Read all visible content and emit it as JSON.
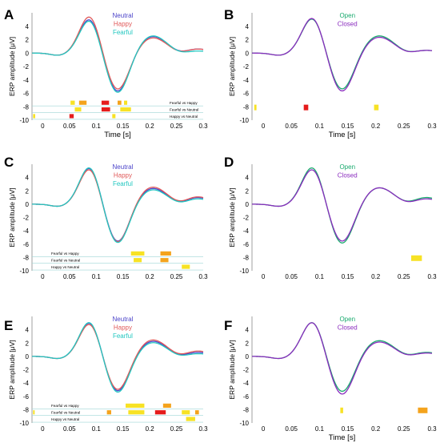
{
  "colors": {
    "Neutral": "#4b43c9",
    "Happy": "#e05a5a",
    "Fearful": "#22c7c0",
    "Open": "#1aaa6e",
    "Closed": "#8a2cbe",
    "sig_low": "#f7e225",
    "sig_mid": "#f4a31d",
    "sig_high": "#e51c1c"
  },
  "chart_data": [
    {
      "panel": "A",
      "type": "line",
      "xlabel": "Time [s]",
      "ylabel": "ERP amplitude [μV]",
      "xlim": [
        -0.02,
        0.3
      ],
      "ylim": [
        -10,
        6
      ],
      "xticks": [
        "0",
        "0.05",
        "0.1",
        "0.15",
        "0.2",
        "0.25",
        "0.3"
      ],
      "yticks": [
        "4",
        "2",
        "0",
        "-2",
        "-4",
        "-6",
        "-8",
        "-10"
      ],
      "legend": [
        "Neutral",
        "Happy",
        "Fearful"
      ],
      "series": [
        {
          "name": "Neutral",
          "peak1": 5.2,
          "trough": -5.9,
          "peak2": 2.5,
          "tail": 0.6
        },
        {
          "name": "Happy",
          "peak1": 5.6,
          "trough": -5.6,
          "peak2": 2.3,
          "tail": 0.6
        },
        {
          "name": "Fearful",
          "peak1": 5.0,
          "trough": -6.1,
          "peak2": 2.6,
          "tail": 0.3
        }
      ],
      "comparisons": [
        {
          "label": "Fearful vs Happy",
          "intervals": [
            [
              0.052,
              0.06
            ],
            [
              0.068,
              0.082
            ],
            [
              0.11,
              0.124
            ],
            [
              0.14,
              0.147
            ],
            [
              0.152,
              0.158
            ]
          ]
        },
        {
          "label": "Fearful vs Neutral",
          "intervals": [
            [
              0.06,
              0.072
            ],
            [
              0.11,
              0.126
            ],
            [
              0.145,
              0.165
            ]
          ]
        },
        {
          "label": "Happy vs Neutral",
          "intervals": [
            [
              -0.018,
              -0.014
            ],
            [
              0.05,
              0.058
            ],
            [
              0.13,
              0.136
            ]
          ]
        }
      ]
    },
    {
      "panel": "B",
      "type": "line",
      "xlabel": "Time [s]",
      "ylabel": "ERP amplitude [μV]",
      "xlim": [
        -0.02,
        0.3
      ],
      "ylim": [
        -10,
        6
      ],
      "xticks": [
        "0",
        "0.05",
        "0.1",
        "0.15",
        "0.2",
        "0.25",
        "0.3"
      ],
      "yticks": [
        "4",
        "2",
        "0",
        "-2",
        "-4",
        "-6",
        "-8",
        "-10"
      ],
      "legend": [
        "Open",
        "Closed"
      ],
      "series": [
        {
          "name": "Open",
          "peak1": 5.3,
          "trough": -5.6,
          "peak2": 2.6,
          "tail": 0.4
        },
        {
          "name": "Closed",
          "peak1": 5.4,
          "trough": -5.9,
          "peak2": 2.4,
          "tail": 0.4
        }
      ],
      "comparisons": [
        {
          "label": "",
          "intervals": [
            [
              -0.016,
              -0.012
            ],
            [
              0.072,
              0.08
            ],
            [
              0.197,
              0.205
            ]
          ]
        }
      ]
    },
    {
      "panel": "C",
      "type": "line",
      "xlabel": "",
      "ylabel": "ERP amplitude [μV]",
      "xlim": [
        -0.02,
        0.3
      ],
      "ylim": [
        -10,
        6
      ],
      "xticks": [
        "0",
        "0.05",
        "0.1",
        "0.15",
        "0.2",
        "0.25",
        "0.3"
      ],
      "yticks": [
        "4",
        "2",
        "0",
        "-2",
        "-4",
        "-6",
        "-8",
        "-10"
      ],
      "legend": [
        "Neutral",
        "Happy",
        "Fearful"
      ],
      "series": [
        {
          "name": "Neutral",
          "peak1": 5.6,
          "trough": -5.8,
          "peak2": 2.4,
          "tail": 1.0
        },
        {
          "name": "Happy",
          "peak1": 5.4,
          "trough": -5.9,
          "peak2": 2.6,
          "tail": 1.1
        },
        {
          "name": "Fearful",
          "peak1": 5.7,
          "trough": -6.0,
          "peak2": 2.2,
          "tail": 0.8
        }
      ],
      "comparisons": [
        {
          "label": "Fearful vs Happy",
          "intervals": [
            [
              0.165,
              0.19
            ],
            [
              0.22,
              0.24
            ]
          ]
        },
        {
          "label": "Fearful vs Neutral",
          "intervals": [
            [
              0.17,
              0.185
            ],
            [
              0.22,
              0.235
            ]
          ]
        },
        {
          "label": "Happy vs Neutral",
          "intervals": [
            [
              0.26,
              0.275
            ]
          ]
        }
      ]
    },
    {
      "panel": "D",
      "type": "line",
      "xlabel": "",
      "ylabel": "ERP amplitude [μV]",
      "xlim": [
        -0.02,
        0.3
      ],
      "ylim": [
        -10,
        6
      ],
      "xticks": [
        "0",
        "0.05",
        "0.1",
        "0.15",
        "0.2",
        "0.25",
        "0.3"
      ],
      "yticks": [
        "4",
        "2",
        "0",
        "-2",
        "-4",
        "-6",
        "-8",
        "-10"
      ],
      "legend": [
        "Open",
        "Closed"
      ],
      "series": [
        {
          "name": "Open",
          "peak1": 5.7,
          "trough": -6.1,
          "peak2": 2.5,
          "tail": 1.0
        },
        {
          "name": "Closed",
          "peak1": 5.4,
          "trough": -5.8,
          "peak2": 2.5,
          "tail": 0.8
        }
      ],
      "comparisons": [
        {
          "label": "",
          "intervals": [
            [
              0.263,
              0.282
            ]
          ]
        }
      ]
    },
    {
      "panel": "E",
      "type": "line",
      "xlabel": "",
      "ylabel": "ERP amplitude [μV]",
      "xlim": [
        -0.02,
        0.3
      ],
      "ylim": [
        -10,
        6
      ],
      "xticks": [
        "0",
        "0.05",
        "0.1",
        "0.15",
        "0.2",
        "0.25",
        "0.3"
      ],
      "yticks": [
        "4",
        "2",
        "0",
        "-2",
        "-4",
        "-6",
        "-8",
        "-10"
      ],
      "legend": [
        "Neutral",
        "Happy",
        "Fearful"
      ],
      "series": [
        {
          "name": "Neutral",
          "peak1": 5.2,
          "trough": -5.4,
          "peak2": 2.3,
          "tail": 0.6
        },
        {
          "name": "Happy",
          "peak1": 5.0,
          "trough": -5.2,
          "peak2": 2.5,
          "tail": 0.8
        },
        {
          "name": "Fearful",
          "peak1": 5.3,
          "trough": -5.6,
          "peak2": 2.1,
          "tail": 0.4
        }
      ],
      "comparisons": [
        {
          "label": "Fearful vs Happy",
          "intervals": [
            [
              0.155,
              0.19
            ],
            [
              0.225,
              0.24
            ]
          ]
        },
        {
          "label": "Fearful vs Neutral",
          "intervals": [
            [
              -0.018,
              -0.015
            ],
            [
              0.12,
              0.128
            ],
            [
              0.16,
              0.19
            ],
            [
              0.21,
              0.23
            ],
            [
              0.26,
              0.275
            ],
            [
              0.285,
              0.292
            ]
          ]
        },
        {
          "label": "Happy vs Neutral",
          "intervals": [
            [
              0.268,
              0.285
            ]
          ]
        }
      ]
    },
    {
      "panel": "F",
      "type": "line",
      "xlabel": "Time [s]",
      "ylabel": "ERP amplitude [μV]",
      "xlim": [
        -0.02,
        0.3
      ],
      "ylim": [
        -10,
        6
      ],
      "xticks": [
        "0",
        "0.05",
        "0.1",
        "0.15",
        "0.2",
        "0.25",
        "0.3"
      ],
      "yticks": [
        "4",
        "2",
        "0",
        "-2",
        "-4",
        "-6",
        "-8",
        "-10"
      ],
      "legend": [
        "Open",
        "Closed"
      ],
      "series": [
        {
          "name": "Open",
          "peak1": 5.3,
          "trough": -5.5,
          "peak2": 2.4,
          "tail": 0.6
        },
        {
          "name": "Closed",
          "peak1": 5.3,
          "trough": -5.9,
          "peak2": 2.2,
          "tail": 0.5
        }
      ],
      "comparisons": [
        {
          "label": "",
          "intervals": [
            [
              0.137,
              0.142
            ],
            [
              0.275,
              0.292
            ]
          ]
        }
      ]
    }
  ]
}
